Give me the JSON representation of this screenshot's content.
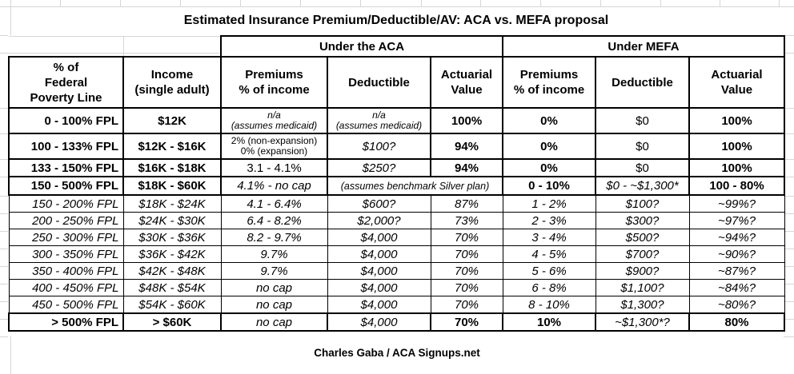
{
  "title": "Estimated Insurance Premium/Deductible/AV: ACA vs. MEFA proposal",
  "credit": "Charles Gaba / ACA Signups.net",
  "colors": {
    "border": "#000000",
    "gridline": "#d6d6d6",
    "background": "#ffffff",
    "text": "#000000"
  },
  "table": {
    "groups": {
      "aca": "Under the ACA",
      "mefa": "Under MEFA"
    },
    "headers": {
      "fpl": "% of\nFederal\nPoverty Line",
      "income": "Income\n(single adult)",
      "premiums": "Premiums\n% of income",
      "deductible": "Deductible",
      "av": "Actuarial\nValue"
    },
    "rows": [
      {
        "fpl": "0 - 100% FPL",
        "income": "$12K",
        "aca_prem": "n/a\n(assumes medicaid)",
        "aca_ded": "n/a\n(assumes medicaid)",
        "aca_av": "100%",
        "mefa_prem": "0%",
        "mefa_ded": "$0",
        "mefa_av": "100%"
      },
      {
        "fpl": "100 - 133% FPL",
        "income": "$12K - $16K",
        "aca_prem": "2% (non-expansion)\n0% (expansion)",
        "aca_ded": "$100?",
        "aca_av": "94%",
        "mefa_prem": "0%",
        "mefa_ded": "$0",
        "mefa_av": "100%"
      },
      {
        "fpl": "133 - 150% FPL",
        "income": "$16K - $18K",
        "aca_prem": "3.1 - 4.1%",
        "aca_ded": "$250?",
        "aca_av": "94%",
        "mefa_prem": "0%",
        "mefa_ded": "$0",
        "mefa_av": "100%"
      },
      {
        "fpl": "150 - 500% FPL",
        "income": "$18K - $60K",
        "aca_prem": "4.1% - no cap",
        "aca_note": "(assumes benchmark Silver plan)",
        "mefa_prem": "0 - 10%",
        "mefa_ded": "$0 - ~$1,300*",
        "mefa_av": "100 - 80%"
      },
      {
        "fpl": "150 - 200% FPL",
        "income": "$18K - $24K",
        "aca_prem": "4.1 - 6.4%",
        "aca_ded": "$600?",
        "aca_av": "87%",
        "mefa_prem": "1 - 2%",
        "mefa_ded": "$100?",
        "mefa_av": "~99%?"
      },
      {
        "fpl": "200 - 250% FPL",
        "income": "$24K - $30K",
        "aca_prem": "6.4 - 8.2%",
        "aca_ded": "$2,000?",
        "aca_av": "73%",
        "mefa_prem": "2 - 3%",
        "mefa_ded": "$300?",
        "mefa_av": "~97%?"
      },
      {
        "fpl": "250 - 300% FPL",
        "income": "$30K - $36K",
        "aca_prem": "8.2 - 9.7%",
        "aca_ded": "$4,000",
        "aca_av": "70%",
        "mefa_prem": "3 - 4%",
        "mefa_ded": "$500?",
        "mefa_av": "~94%?"
      },
      {
        "fpl": "300 - 350% FPL",
        "income": "$36K - $42K",
        "aca_prem": "9.7%",
        "aca_ded": "$4,000",
        "aca_av": "70%",
        "mefa_prem": "4 - 5%",
        "mefa_ded": "$700?",
        "mefa_av": "~90%?"
      },
      {
        "fpl": "350 - 400% FPL",
        "income": "$42K - $48K",
        "aca_prem": "9.7%",
        "aca_ded": "$4,000",
        "aca_av": "70%",
        "mefa_prem": "5 - 6%",
        "mefa_ded": "$900?",
        "mefa_av": "~87%?"
      },
      {
        "fpl": "400 - 450% FPL",
        "income": "$48K - $54K",
        "aca_prem": "no cap",
        "aca_ded": "$4,000",
        "aca_av": "70%",
        "mefa_prem": "6 - 8%",
        "mefa_ded": "$1,100?",
        "mefa_av": "~84%?"
      },
      {
        "fpl": "450 - 500% FPL",
        "income": "$54K - $60K",
        "aca_prem": "no cap",
        "aca_ded": "$4,000",
        "aca_av": "70%",
        "mefa_prem": "8 - 10%",
        "mefa_ded": "$1,300?",
        "mefa_av": "~80%?"
      },
      {
        "fpl": "> 500% FPL",
        "income": "> $60K",
        "aca_prem": "no cap",
        "aca_ded": "$4,000",
        "aca_av": "70%",
        "mefa_prem": "10%",
        "mefa_ded": "~$1,300*?",
        "mefa_av": "80%"
      }
    ]
  }
}
